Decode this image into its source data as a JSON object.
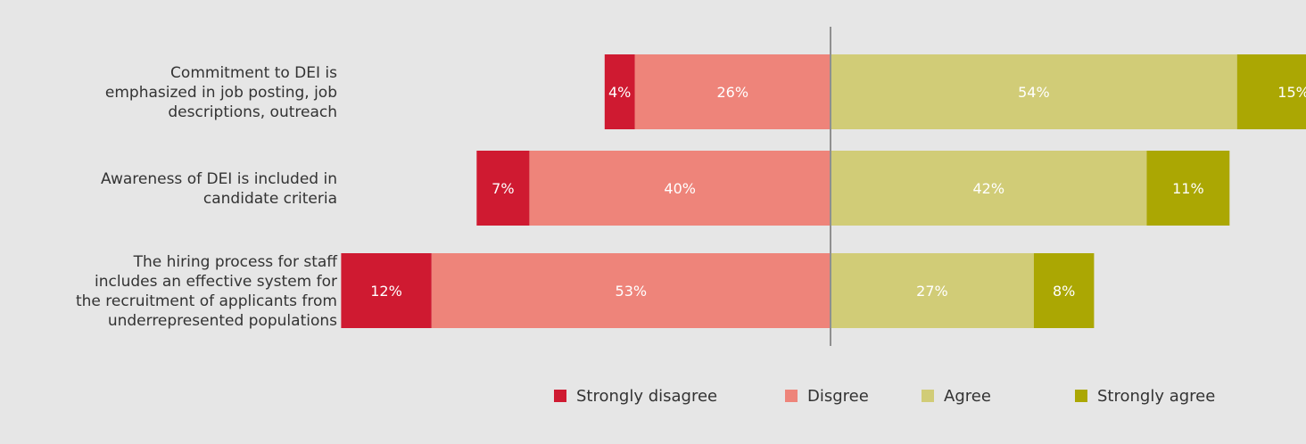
{
  "chart_data": {
    "type": "bar",
    "orientation": "horizontal",
    "stacked": "diverging",
    "categories": [
      "Commitment to DEI is emphasized in job posting, job descriptions, outreach",
      "Awareness of DEI is included in candidate criteria",
      "The hiring process for staff includes an effective system for the recruitment of applicants from underrepresented populations"
    ],
    "category_lines": [
      [
        "Commitment to DEI is",
        "emphasized in job posting, job",
        "descriptions, outreach"
      ],
      [
        "Awareness of DEI is included in",
        "candidate criteria"
      ],
      [
        "The hiring process for staff",
        "includes an effective system for",
        "the recruitment of applicants from",
        "underrepresented populations"
      ]
    ],
    "series": [
      {
        "name": "Strongly disagree",
        "side": "negative",
        "color": "#cf1a31",
        "values": [
          4,
          7,
          12
        ],
        "labels": [
          "4%",
          "7%",
          "12%"
        ]
      },
      {
        "name": "Disgree",
        "side": "negative",
        "color": "#ee847a",
        "values": [
          26,
          40,
          53
        ],
        "labels": [
          "26%",
          "40%",
          "53%"
        ]
      },
      {
        "name": "Agree",
        "side": "positive",
        "color": "#d1cc77",
        "values": [
          54,
          42,
          27
        ],
        "labels": [
          "54%",
          "42%",
          "27%"
        ]
      },
      {
        "name": "Strongly agree",
        "side": "positive",
        "color": "#aba703",
        "values": [
          15,
          11,
          8
        ],
        "labels": [
          "15%",
          "11%",
          "8%"
        ]
      }
    ],
    "unit": "%",
    "center_line": true,
    "grid": false,
    "legend_position": "bottom"
  }
}
